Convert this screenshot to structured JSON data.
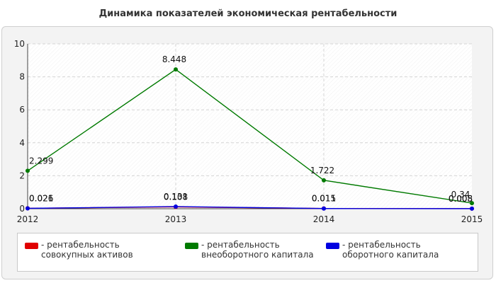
{
  "chart_data": {
    "type": "line",
    "title": "Динамика показателей экономическая рентабельности",
    "categories": [
      "2012",
      "2013",
      "2014",
      "2015"
    ],
    "ylim": [
      0,
      10
    ],
    "yticks": [
      "0",
      "2",
      "4",
      "6",
      "8",
      "10"
    ],
    "grid": true,
    "legend_position": "bottom",
    "series": [
      {
        "name": "- рентабельность совокупных активов",
        "color": "#e00000",
        "values": [
          0.026,
          0.108,
          0.015,
          0.008
        ],
        "labels": [
          "0.026",
          "0.108",
          "0.015",
          "0.008"
        ]
      },
      {
        "name": "- рентабельность внеоборотного капитала",
        "color": "#007a00",
        "values": [
          2.299,
          8.448,
          1.722,
          0.34
        ],
        "labels": [
          "2.299",
          "8.448",
          "1.722",
          "0.34"
        ]
      },
      {
        "name": "- рентабельность оборотного капитала",
        "color": "#0000e0",
        "values": [
          0.021,
          0.131,
          0.011,
          0.005
        ],
        "labels": [
          "0.021",
          "0.131",
          "0.011",
          "0.005"
        ]
      }
    ]
  }
}
